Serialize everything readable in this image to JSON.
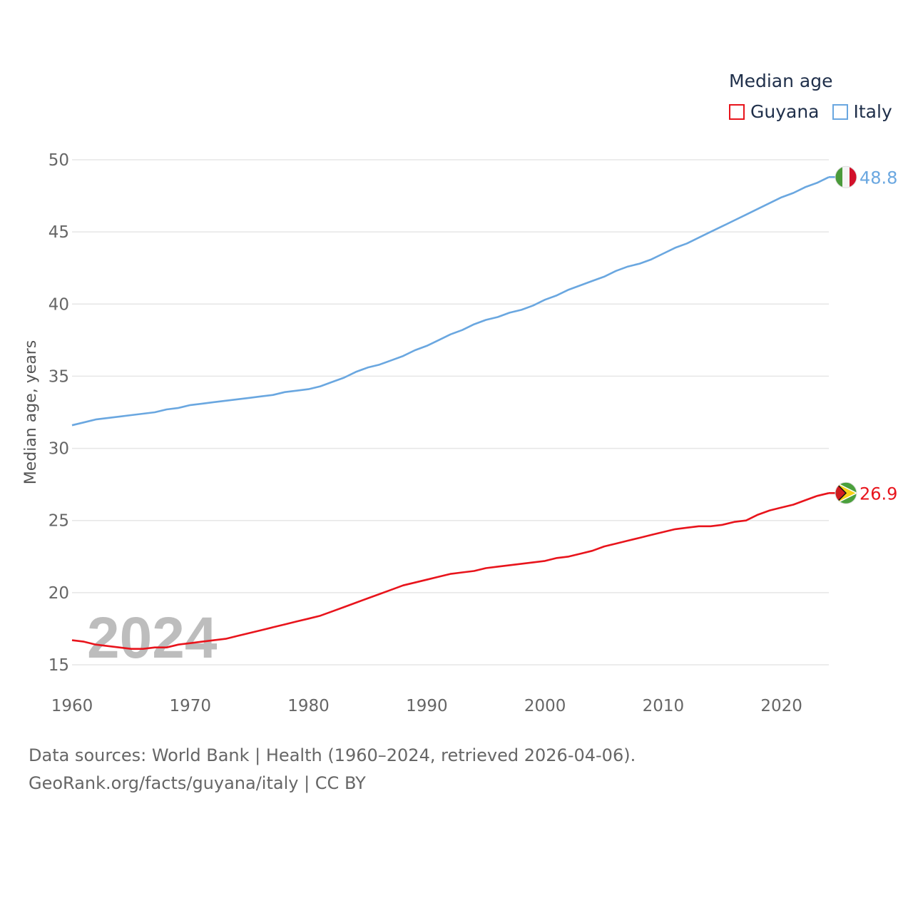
{
  "chart_data": {
    "type": "line",
    "title": "Median age",
    "ylabel": "Median age, years",
    "xlabel": "",
    "xlim": [
      1960,
      2024
    ],
    "ylim": [
      15,
      50
    ],
    "yticks": [
      15,
      20,
      25,
      30,
      35,
      40,
      45,
      50
    ],
    "xticks": [
      1960,
      1970,
      1980,
      1990,
      2000,
      2010,
      2020
    ],
    "watermark_year": "2024",
    "x": [
      1960,
      1961,
      1962,
      1963,
      1964,
      1965,
      1966,
      1967,
      1968,
      1969,
      1970,
      1971,
      1972,
      1973,
      1974,
      1975,
      1976,
      1977,
      1978,
      1979,
      1980,
      1981,
      1982,
      1983,
      1984,
      1985,
      1986,
      1987,
      1988,
      1989,
      1990,
      1991,
      1992,
      1993,
      1994,
      1995,
      1996,
      1997,
      1998,
      1999,
      2000,
      2001,
      2002,
      2003,
      2004,
      2005,
      2006,
      2007,
      2008,
      2009,
      2010,
      2011,
      2012,
      2013,
      2014,
      2015,
      2016,
      2017,
      2018,
      2019,
      2020,
      2021,
      2022,
      2023,
      2024
    ],
    "series": [
      {
        "name": "Guyana",
        "color": "#e8141c",
        "end_label": "26.9",
        "flag": "guyana-flag",
        "values": [
          16.7,
          16.6,
          16.4,
          16.3,
          16.2,
          16.1,
          16.1,
          16.2,
          16.2,
          16.4,
          16.5,
          16.6,
          16.7,
          16.8,
          17.0,
          17.2,
          17.4,
          17.6,
          17.8,
          18.0,
          18.2,
          18.4,
          18.7,
          19.0,
          19.3,
          19.6,
          19.9,
          20.2,
          20.5,
          20.7,
          20.9,
          21.1,
          21.3,
          21.4,
          21.5,
          21.7,
          21.8,
          21.9,
          22.0,
          22.1,
          22.2,
          22.4,
          22.5,
          22.7,
          22.9,
          23.2,
          23.4,
          23.6,
          23.8,
          24.0,
          24.2,
          24.4,
          24.5,
          24.6,
          24.6,
          24.7,
          24.9,
          25.0,
          25.4,
          25.7,
          25.9,
          26.1,
          26.4,
          26.7,
          26.9
        ]
      },
      {
        "name": "Italy",
        "color": "#6aa7e0",
        "end_label": "48.8",
        "flag": "italy-flag",
        "values": [
          31.6,
          31.8,
          32.0,
          32.1,
          32.2,
          32.3,
          32.4,
          32.5,
          32.7,
          32.8,
          33.0,
          33.1,
          33.2,
          33.3,
          33.4,
          33.5,
          33.6,
          33.7,
          33.9,
          34.0,
          34.1,
          34.3,
          34.6,
          34.9,
          35.3,
          35.6,
          35.8,
          36.1,
          36.4,
          36.8,
          37.1,
          37.5,
          37.9,
          38.2,
          38.6,
          38.9,
          39.1,
          39.4,
          39.6,
          39.9,
          40.3,
          40.6,
          41.0,
          41.3,
          41.6,
          41.9,
          42.3,
          42.6,
          42.8,
          43.1,
          43.5,
          43.9,
          44.2,
          44.6,
          45.0,
          45.4,
          45.8,
          46.2,
          46.6,
          47.0,
          47.4,
          47.7,
          48.1,
          48.4,
          48.8
        ]
      }
    ]
  },
  "legend": {
    "title": "Median age",
    "items": [
      {
        "label": "Guyana",
        "color": "#e8141c"
      },
      {
        "label": "Italy",
        "color": "#6aa7e0"
      }
    ]
  },
  "footer": {
    "sources": "Data sources: World Bank | Health (1960–2024, retrieved 2026-04-06).",
    "url": "GeoRank.org/facts/guyana/italy | CC BY"
  }
}
